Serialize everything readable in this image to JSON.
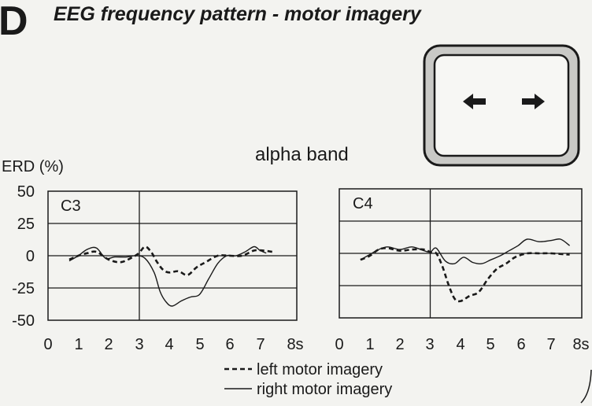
{
  "panel_letter": "D",
  "title": "EEG frequency pattern - motor imagery",
  "band_label": "alpha band",
  "cue_icon": "left-right-arrows-icon",
  "colors": {
    "ink": "#1a1a1a",
    "paper": "#f3f3f0"
  },
  "chart_data": [
    {
      "type": "line",
      "panel": "C3",
      "ylabel": "ERD (%)",
      "ylim": [
        -50,
        50
      ],
      "yticks": [
        "50",
        "25",
        "0",
        "-25",
        "-50"
      ],
      "xlim": [
        0,
        8
      ],
      "xticks": [
        "0",
        "1",
        "2",
        "3",
        "4",
        "5",
        "6",
        "7",
        "8s"
      ],
      "cue_time": 3,
      "series": [
        {
          "name": "left motor imagery",
          "style": "dashed",
          "x": [
            0.7,
            1.0,
            1.3,
            1.6,
            2.0,
            2.4,
            2.8,
            3.0,
            3.2,
            3.4,
            3.6,
            3.8,
            4.0,
            4.3,
            4.6,
            4.9,
            5.2,
            5.6,
            6.0,
            6.4,
            6.8,
            7.1,
            7.4
          ],
          "y": [
            -3,
            0,
            2,
            3,
            -3,
            -5,
            -1,
            2,
            7,
            3,
            -5,
            -11,
            -13,
            -12,
            -15,
            -9,
            -5,
            0,
            0,
            0,
            4,
            4,
            3
          ]
        },
        {
          "name": "right motor imagery",
          "style": "solid",
          "x": [
            0.7,
            1.0,
            1.3,
            1.6,
            1.9,
            2.2,
            2.6,
            2.9,
            3.2,
            3.5,
            3.7,
            3.9,
            4.1,
            4.4,
            4.7,
            5.0,
            5.3,
            5.6,
            5.9,
            6.2,
            6.5,
            6.8,
            7.0,
            7.2
          ],
          "y": [
            -4,
            0,
            5,
            6,
            -2,
            -1,
            -1,
            0,
            -2,
            -13,
            -28,
            -36,
            -39,
            -35,
            -32,
            -30,
            -18,
            -6,
            0,
            0,
            3,
            7,
            4,
            2
          ]
        }
      ]
    },
    {
      "type": "line",
      "panel": "C4",
      "ylim": [
        -50,
        50
      ],
      "xlim": [
        0,
        8
      ],
      "xticks": [
        "0",
        "1",
        "2",
        "3",
        "4",
        "5",
        "6",
        "7",
        "8s"
      ],
      "cue_time": 3,
      "series": [
        {
          "name": "left motor imagery",
          "style": "dashed",
          "x": [
            0.7,
            1.0,
            1.3,
            1.6,
            2.0,
            2.4,
            2.8,
            3.0,
            3.2,
            3.4,
            3.6,
            3.8,
            4.0,
            4.3,
            4.6,
            4.9,
            5.2,
            5.5,
            5.8,
            6.2,
            6.6,
            7.0,
            7.6
          ],
          "y": [
            -5,
            -2,
            3,
            4,
            2,
            3,
            3,
            1,
            0,
            -10,
            -24,
            -35,
            -37,
            -33,
            -30,
            -20,
            -12,
            -8,
            -3,
            0,
            0,
            0,
            -1
          ]
        },
        {
          "name": "right motor imagery",
          "style": "solid",
          "x": [
            0.7,
            1.0,
            1.3,
            1.6,
            2.0,
            2.4,
            2.8,
            3.0,
            3.2,
            3.5,
            3.8,
            4.1,
            4.4,
            4.7,
            5.0,
            5.3,
            5.6,
            5.9,
            6.2,
            6.6,
            7.0,
            7.3,
            7.6
          ],
          "y": [
            -5,
            -1,
            3,
            5,
            3,
            5,
            2,
            1,
            4,
            -6,
            -8,
            -3,
            -7,
            -8,
            -5,
            -2,
            2,
            6,
            11,
            9,
            10,
            11,
            6
          ]
        }
      ]
    }
  ]
}
